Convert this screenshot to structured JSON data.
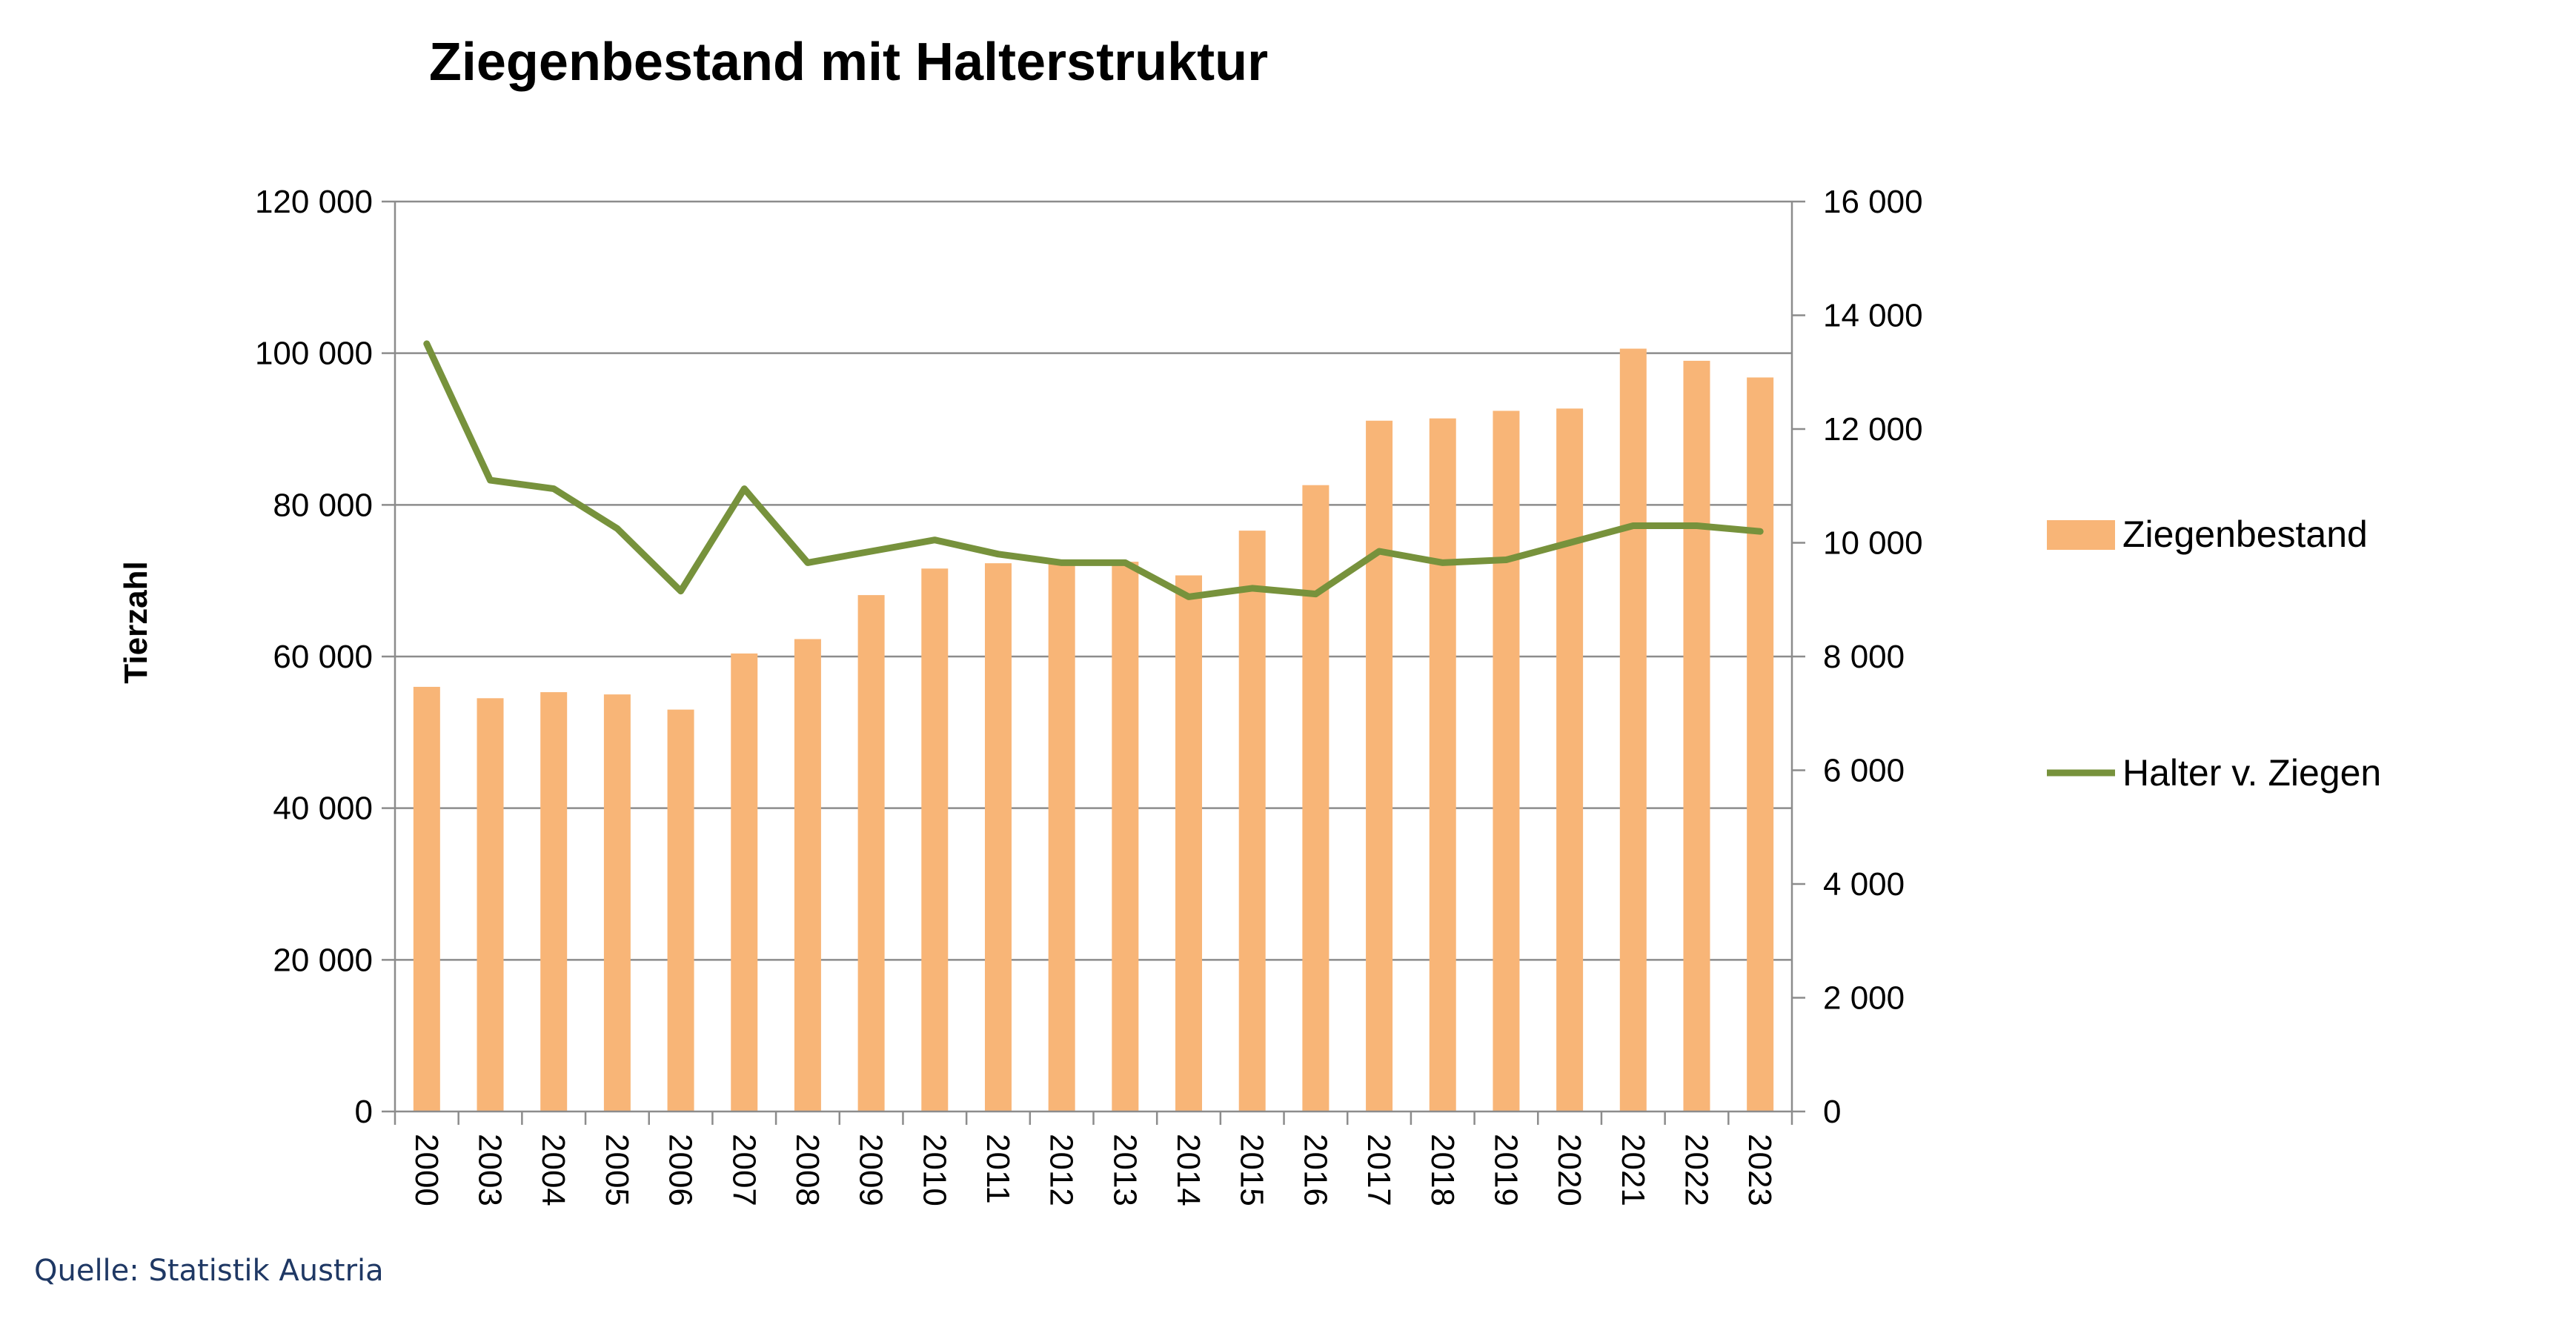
{
  "chart_data": {
    "type": "bar",
    "title": "Ziegenbestand mit Halterstruktur",
    "ylabel": "Tierzahl",
    "source": "Quelle: Statistik Austria",
    "categories": [
      "2000",
      "2003",
      "2004",
      "2005",
      "2006",
      "2007",
      "2008",
      "2009",
      "2010",
      "2011",
      "2012",
      "2013",
      "2014",
      "2015",
      "2016",
      "2017",
      "2018",
      "2019",
      "2020",
      "2021",
      "2022",
      "2023"
    ],
    "y_left": {
      "min": 0,
      "max": 120000,
      "ticks": [
        0,
        20000,
        40000,
        60000,
        80000,
        100000,
        120000
      ],
      "tick_labels": [
        "0",
        "20 000",
        "40 000",
        "60 000",
        "80 000",
        "100 000",
        "120 000"
      ]
    },
    "y_right": {
      "min": 0,
      "max": 16000,
      "ticks": [
        0,
        2000,
        4000,
        6000,
        8000,
        10000,
        12000,
        14000,
        16000
      ],
      "tick_labels": [
        "0",
        "2 000",
        "4 000",
        "6 000",
        "8 000",
        "10 000",
        "12 000",
        "14 000",
        "16 000"
      ]
    },
    "grid": true,
    "legend_position": "right",
    "series": [
      {
        "name": "Ziegenbestand",
        "type": "bar",
        "axis": "left",
        "color": "#f8b577",
        "values": [
          56000,
          54500,
          55300,
          55000,
          53000,
          60400,
          62300,
          68100,
          71600,
          72300,
          72800,
          72500,
          70700,
          76600,
          82600,
          91100,
          91400,
          92400,
          92700,
          100600,
          99000,
          96800
        ]
      },
      {
        "name": "Halter v. Ziegen",
        "type": "line",
        "axis": "right",
        "color": "#77923c",
        "values": [
          13500,
          11100,
          10950,
          10250,
          9150,
          10950,
          9650,
          9850,
          10050,
          9800,
          9650,
          9650,
          9050,
          9200,
          9100,
          9850,
          9650,
          9700,
          10000,
          10300,
          10300,
          10200
        ]
      }
    ]
  }
}
